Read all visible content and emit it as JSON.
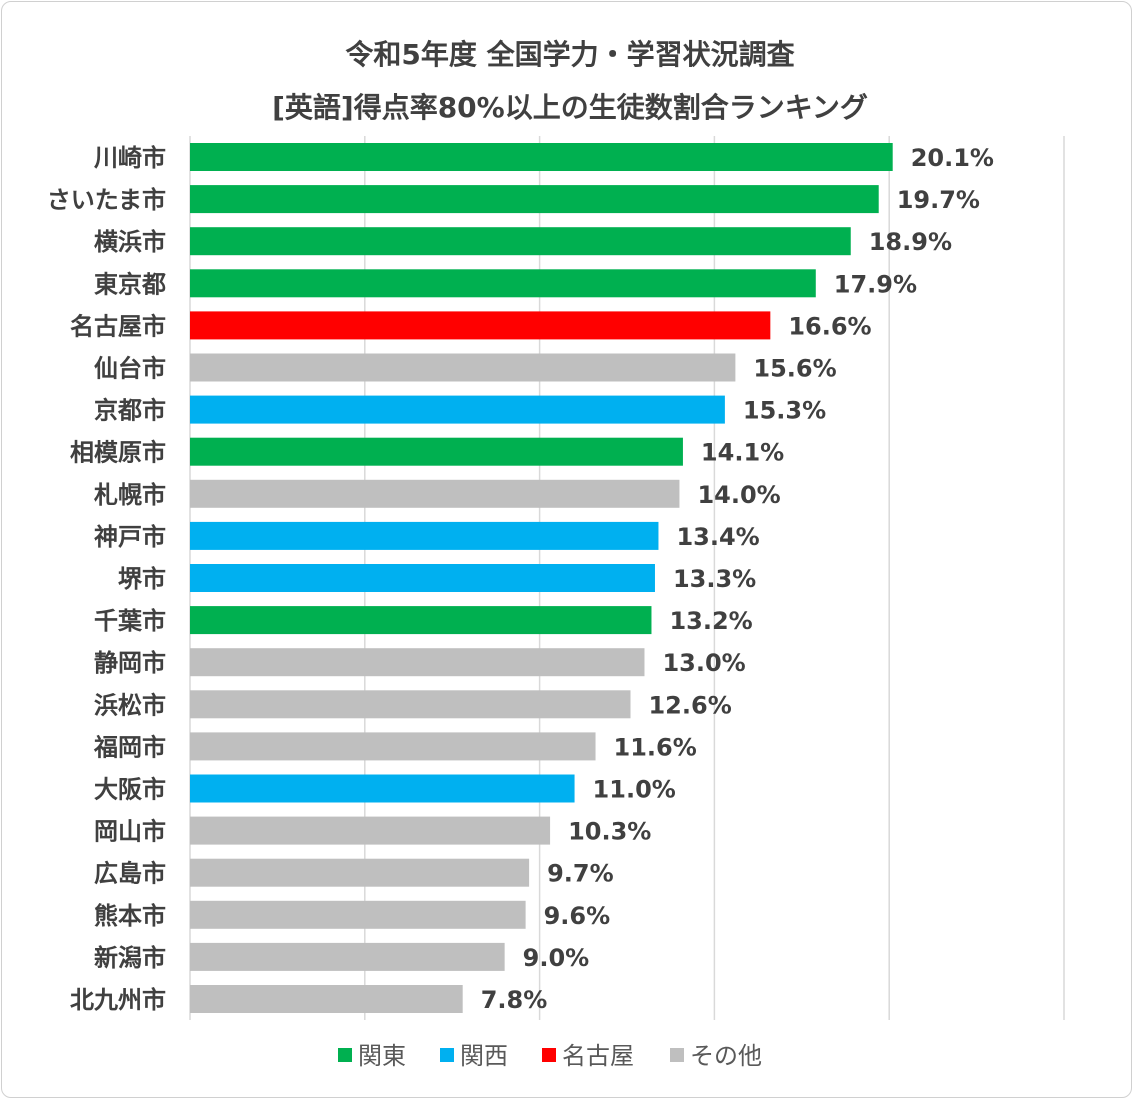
{
  "chart_data": {
    "type": "bar",
    "orientation": "horizontal",
    "title": "令和5年度 全国学力・学習状況調査",
    "subtitle": "[英語]得点率80%以上の生徒数割合ランキング",
    "categories": [
      "川崎市",
      "さいたま市",
      "横浜市",
      "東京都",
      "名古屋市",
      "仙台市",
      "京都市",
      "相模原市",
      "札幌市",
      "神戸市",
      "堺市",
      "千葉市",
      "静岡市",
      "浜松市",
      "福岡市",
      "大阪市",
      "岡山市",
      "広島市",
      "熊本市",
      "新潟市",
      "北九州市"
    ],
    "values": [
      20.1,
      19.7,
      18.9,
      17.9,
      16.6,
      15.6,
      15.3,
      14.1,
      14.0,
      13.4,
      13.3,
      13.2,
      13.0,
      12.6,
      11.6,
      11.0,
      10.3,
      9.7,
      9.6,
      9.0,
      7.8
    ],
    "value_labels": [
      "20.1%",
      "19.7%",
      "18.9%",
      "17.9%",
      "16.6%",
      "15.6%",
      "15.3%",
      "14.1%",
      "14.0%",
      "13.4%",
      "13.3%",
      "13.2%",
      "13.0%",
      "12.6%",
      "11.6%",
      "11.0%",
      "10.3%",
      "9.7%",
      "9.6%",
      "9.0%",
      "7.8%"
    ],
    "groups": [
      "関東",
      "関東",
      "関東",
      "関東",
      "名古屋",
      "その他",
      "関西",
      "関東",
      "その他",
      "関西",
      "関西",
      "関東",
      "その他",
      "その他",
      "その他",
      "関西",
      "その他",
      "その他",
      "その他",
      "その他",
      "その他"
    ],
    "legend": [
      {
        "name": "関東",
        "color": "#00b050"
      },
      {
        "name": "関西",
        "color": "#00b0f0"
      },
      {
        "name": "名古屋",
        "color": "#ff0000"
      },
      {
        "name": "その他",
        "color": "#bfbfbf"
      }
    ],
    "xlim": [
      0,
      25
    ],
    "grid": true,
    "legend_position": "bottom"
  }
}
